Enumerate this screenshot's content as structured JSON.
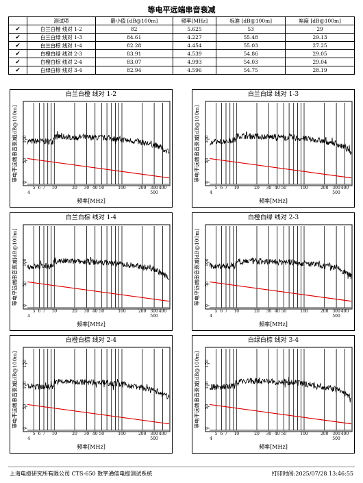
{
  "page_title": "等电平远端串音衰减",
  "table": {
    "headers": [
      "测试项",
      "最小值 [dB@100m]",
      "频率[MHz]",
      "标准 [dB@100m]",
      "裕度 [dB@100m]"
    ],
    "rows": [
      {
        "name": "白兰白橙 线对 1-2",
        "min": "82",
        "freq": "5.625",
        "std": "53",
        "margin": "29"
      },
      {
        "name": "白兰白绿 线对 1-3",
        "min": "84.61",
        "freq": "4.227",
        "std": "55.48",
        "margin": "29.13"
      },
      {
        "name": "白兰白棕 线对 1-4",
        "min": "82.28",
        "freq": "4.454",
        "std": "55.03",
        "margin": "27.25"
      },
      {
        "name": "白橙白绿 线对 2-3",
        "min": "83.91",
        "freq": "4.539",
        "std": "54.86",
        "margin": "29.05"
      },
      {
        "name": "白橙白棕 线对 2-4",
        "min": "83.07",
        "freq": "4.993",
        "std": "54.03",
        "margin": "29.04"
      },
      {
        "name": "白绿白棕 线对 3-4",
        "min": "82.94",
        "freq": "4.596",
        "std": "54.75",
        "margin": "28.19"
      }
    ],
    "check_icon": "check-icon"
  },
  "chart_data": [
    {
      "type": "line",
      "title": "白兰白橙 线对 1-2",
      "xlabel": "频率[MHz]",
      "ylabel": "等电平远端串音衰减[dB@100m]",
      "xscale": "log",
      "xlim": [
        4,
        500
      ],
      "ylim": [
        0,
        175
      ],
      "yticks": [
        "0",
        "50",
        "100"
      ],
      "xticks": [
        "5",
        "6",
        "7",
        "10",
        "20",
        "30",
        "40",
        "50",
        "100",
        "200",
        "300",
        "400"
      ],
      "xticks_extra": [
        "4",
        "500"
      ],
      "series": [
        {
          "color": "#000000",
          "base": [
            [
              4,
              95
            ],
            [
              9.5,
              95
            ],
            [
              10,
              106
            ],
            [
              60,
              103
            ],
            [
              150,
              96
            ],
            [
              300,
              87
            ],
            [
              500,
              70
            ]
          ]
        },
        {
          "color": "#dd0000",
          "x": [
            4,
            500
          ],
          "y": [
            55,
            10
          ]
        }
      ]
    },
    {
      "type": "line",
      "title": "白兰白绿 线对 1-3",
      "xlabel": "频率[MHz]",
      "ylabel": "等电平远端串音衰减[dB@100m]",
      "xscale": "log",
      "xlim": [
        4,
        500
      ],
      "ylim": [
        0,
        175
      ],
      "yticks": [
        "0",
        "50",
        "100"
      ],
      "xticks": [
        "5",
        "6",
        "7",
        "10",
        "20",
        "30",
        "40",
        "50",
        "100",
        "200",
        "300",
        "400"
      ],
      "xticks_extra": [
        "4",
        "500"
      ],
      "series": [
        {
          "color": "#000000",
          "base": [
            [
              4,
              92
            ],
            [
              9.5,
              98
            ],
            [
              10,
              108
            ],
            [
              60,
              104
            ],
            [
              150,
              98
            ],
            [
              300,
              90
            ],
            [
              500,
              72
            ]
          ]
        },
        {
          "color": "#dd0000",
          "x": [
            4,
            500
          ],
          "y": [
            55,
            10
          ]
        }
      ]
    },
    {
      "type": "line",
      "title": "白兰白棕 线对 1-4",
      "xlabel": "频率[MHz]",
      "ylabel": "等电平远端串音衰减[dB@100m]",
      "xscale": "log",
      "xlim": [
        4,
        500
      ],
      "ylim": [
        0,
        175
      ],
      "yticks": [
        "0",
        "50",
        "100"
      ],
      "xticks": [
        "5",
        "6",
        "7",
        "10",
        "20",
        "30",
        "40",
        "50",
        "100",
        "200",
        "300",
        "400"
      ],
      "xticks_extra": [
        "4",
        "500"
      ],
      "series": [
        {
          "color": "#000000",
          "base": [
            [
              4,
              90
            ],
            [
              9.5,
              92
            ],
            [
              10,
              104
            ],
            [
              60,
              100
            ],
            [
              150,
              93
            ],
            [
              300,
              85
            ],
            [
              500,
              65
            ]
          ]
        },
        {
          "color": "#dd0000",
          "x": [
            4,
            500
          ],
          "y": [
            55,
            10
          ]
        }
      ]
    },
    {
      "type": "line",
      "title": "白橙白绿 线对 2-3",
      "xlabel": "频率[MHz]",
      "ylabel": "等电平远端串音衰减[dB@100m]",
      "xscale": "log",
      "xlim": [
        4,
        500
      ],
      "ylim": [
        0,
        175
      ],
      "yticks": [
        "0",
        "50",
        "100"
      ],
      "xticks": [
        "5",
        "6",
        "7",
        "10",
        "20",
        "30",
        "40",
        "50",
        "100",
        "200",
        "300",
        "400"
      ],
      "xticks_extra": [
        "4",
        "500"
      ],
      "series": [
        {
          "color": "#000000",
          "base": [
            [
              4,
              91
            ],
            [
              9.5,
              92
            ],
            [
              10,
              104
            ],
            [
              60,
              101
            ],
            [
              150,
              95
            ],
            [
              300,
              88
            ],
            [
              500,
              70
            ]
          ]
        },
        {
          "color": "#dd0000",
          "x": [
            4,
            500
          ],
          "y": [
            55,
            10
          ]
        }
      ]
    },
    {
      "type": "line",
      "title": "白橙白棕 线对 2-4",
      "xlabel": "频率[MHz]",
      "ylabel": "等电平远端串音衰减[dB@100m]",
      "xscale": "log",
      "xlim": [
        4,
        500
      ],
      "ylim": [
        0,
        175
      ],
      "yticks": [
        "0",
        "50",
        "100",
        "150"
      ],
      "xticks": [
        "5",
        "6",
        "7",
        "10",
        "20",
        "30",
        "40",
        "50",
        "100",
        "200",
        "300",
        "400"
      ],
      "xticks_extra": [
        "4",
        "500"
      ],
      "series": [
        {
          "color": "#000000",
          "base": [
            [
              4,
              97
            ],
            [
              9.5,
              96
            ],
            [
              10,
              108
            ],
            [
              60,
              106
            ],
            [
              150,
              98
            ],
            [
              300,
              88
            ],
            [
              500,
              72
            ]
          ]
        },
        {
          "color": "#dd0000",
          "x": [
            4,
            500
          ],
          "y": [
            55,
            10
          ]
        }
      ]
    },
    {
      "type": "line",
      "title": "白绿白棕 线对 3-4",
      "xlabel": "频率[MHz]",
      "ylabel": "等电平远端串音衰减[dB@100m]",
      "xscale": "log",
      "xlim": [
        4,
        500
      ],
      "ylim": [
        0,
        175
      ],
      "yticks": [
        "0",
        "50",
        "100",
        "150"
      ],
      "xticks": [
        "5",
        "6",
        "7",
        "10",
        "20",
        "30",
        "40",
        "50",
        "100",
        "200",
        "300",
        "400"
      ],
      "xticks_extra": [
        "4",
        "500"
      ],
      "series": [
        {
          "color": "#000000",
          "base": [
            [
              4,
              95
            ],
            [
              9.5,
              97
            ],
            [
              10,
              110
            ],
            [
              60,
              107
            ],
            [
              150,
              100
            ],
            [
              300,
              90
            ],
            [
              500,
              72
            ]
          ]
        },
        {
          "color": "#dd0000",
          "x": [
            4,
            500
          ],
          "y": [
            55,
            10
          ]
        }
      ]
    }
  ],
  "footer": {
    "left": "上海电缆研究所有限公司 CTS-650 数字通信电缆测试系统",
    "right": "打印时间:2025/07/28 13:46:55"
  }
}
